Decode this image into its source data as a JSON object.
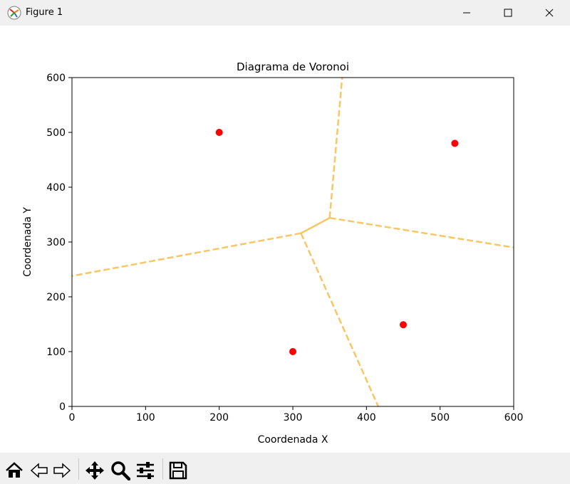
{
  "window": {
    "title": "Figure 1",
    "icons": {
      "app": "matplotlib-figure-icon",
      "minimize": "minimize-icon",
      "maximize": "maximize-icon",
      "close": "close-icon"
    }
  },
  "toolbar": {
    "tools": [
      {
        "name": "home",
        "icon": "home-icon"
      },
      {
        "name": "back",
        "icon": "back-arrow-icon"
      },
      {
        "name": "forward",
        "icon": "forward-arrow-icon"
      },
      {
        "name": "pan",
        "icon": "move-icon"
      },
      {
        "name": "zoom",
        "icon": "zoom-icon"
      },
      {
        "name": "configure-subplots",
        "icon": "sliders-icon"
      },
      {
        "name": "save",
        "icon": "save-icon"
      }
    ]
  },
  "chart_data": {
    "type": "scatter",
    "title": "Diagrama de Voronoi",
    "xlabel": "Coordenada X",
    "ylabel": "Coordenada Y",
    "xlim": [
      0,
      600
    ],
    "ylim": [
      0,
      600
    ],
    "xticks": [
      0,
      100,
      200,
      300,
      400,
      500,
      600
    ],
    "yticks": [
      0,
      100,
      200,
      300,
      400,
      500,
      600
    ],
    "grid": false,
    "points": [
      {
        "x": 200,
        "y": 500
      },
      {
        "x": 520,
        "y": 480
      },
      {
        "x": 300,
        "y": 100
      },
      {
        "x": 450,
        "y": 149
      }
    ],
    "point_color": "#ff0000",
    "voronoi_vertices": [
      {
        "x": 311,
        "y": 316
      },
      {
        "x": 350,
        "y": 344
      }
    ],
    "voronoi_edges": [
      {
        "from": [
          311,
          316
        ],
        "to": [
          350,
          344
        ],
        "style": "solid"
      },
      {
        "from": [
          350,
          344
        ],
        "to": [
          367,
          600
        ],
        "style": "dashed"
      },
      {
        "from": [
          350,
          344
        ],
        "to": [
          600,
          290
        ],
        "style": "dashed"
      },
      {
        "from": [
          311,
          316
        ],
        "to": [
          0,
          238
        ],
        "style": "dashed"
      },
      {
        "from": [
          311,
          316
        ],
        "to": [
          416,
          0
        ],
        "style": "dashed"
      }
    ],
    "edge_color": "#f8c55c"
  }
}
